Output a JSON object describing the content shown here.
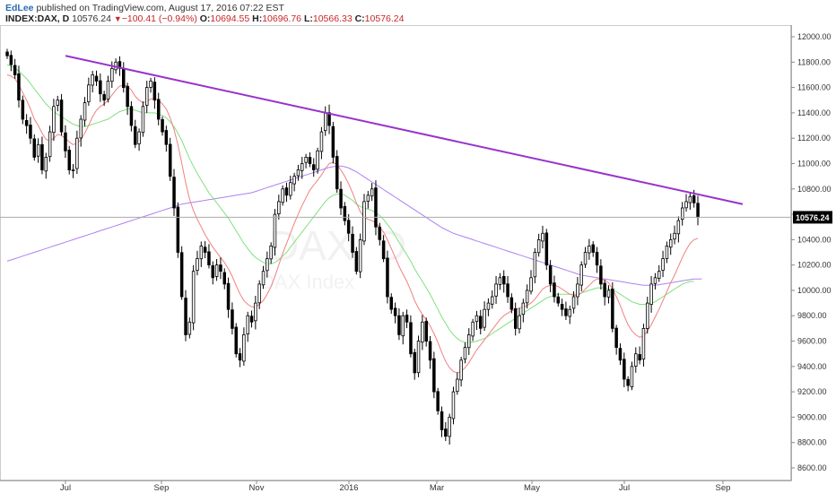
{
  "header": {
    "author": "EdLee",
    "published": "published on TradingView.com, August 17, 2016 07:22 EST",
    "symbol": "INDEX:DAX, D",
    "last": "10576.24",
    "change": "−100.41 (−0.94%)",
    "o_label": "O:",
    "o_value": "10694.55",
    "h_label": "H:",
    "h_value": "10696.76",
    "l_label": "L:",
    "l_value": "10566.33",
    "c_label": "C:",
    "c_value": "10576.24"
  },
  "watermark": {
    "line1": "DAX, D",
    "line2": "DAX Index"
  },
  "colors": {
    "up_candle": "#ffffff",
    "down_candle": "#000000",
    "ma_fast": "#f08080",
    "ma_mid": "#80e080",
    "ma_slow": "#b080f0",
    "trendline": "#9932cc",
    "price_line": "#aaaaaa",
    "price_tag_bg": "#000000"
  },
  "chart_data": {
    "type": "candlestick",
    "ylim": [
      8500,
      12100
    ],
    "y_ticks": [
      8600,
      8800,
      9000,
      9200,
      9400,
      9600,
      9800,
      10000,
      10200,
      10400,
      10600,
      10800,
      11000,
      11200,
      11400,
      11600,
      11800,
      12000
    ],
    "y_tick_labels": [
      "8600.00",
      "8800.00",
      "9000.00",
      "9200.00",
      "9400.00",
      "9600.00",
      "9800.00",
      "10000.00",
      "10200.00",
      "10400.00",
      "10600.00",
      "10800.00",
      "11000.00",
      "11200.00",
      "11400.00",
      "11600.00",
      "11800.00",
      "12000.00"
    ],
    "x_tick_labels": [
      "Jul",
      "Sep",
      "Nov",
      "2016",
      "Mar",
      "May",
      "Jul",
      "Sep"
    ],
    "last_price_label": "10576.24",
    "last_price": 10576.24,
    "trendline": {
      "start": {
        "date": "2015-07-01",
        "price": 11850
      },
      "end": {
        "date": "2016-08-31",
        "price": 10680
      }
    },
    "closes": [
      11850,
      11780,
      11700,
      11500,
      11350,
      11300,
      11200,
      11050,
      11150,
      10950,
      11050,
      11250,
      11450,
      11500,
      11250,
      11100,
      10950,
      10950,
      11200,
      11350,
      11480,
      11620,
      11700,
      11650,
      11550,
      11500,
      11650,
      11750,
      11800,
      11750,
      11600,
      11450,
      11300,
      11150,
      11250,
      11450,
      11600,
      11650,
      11500,
      11350,
      11250,
      11150,
      10900,
      10650,
      10300,
      9950,
      9650,
      9750,
      10150,
      10250,
      10350,
      10300,
      10200,
      10100,
      10200,
      10150,
      10050,
      9850,
      9700,
      9500,
      9450,
      9650,
      9800,
      9750,
      9900,
      10050,
      10150,
      10250,
      10350,
      10600,
      10700,
      10800,
      10750,
      10850,
      10900,
      10950,
      11000,
      11050,
      11000,
      10950,
      11100,
      11250,
      11400,
      11300,
      11050,
      10800,
      10650,
      10550,
      10450,
      10300,
      10150,
      10400,
      10700,
      10750,
      10800,
      10500,
      10400,
      10250,
      9950,
      9850,
      9800,
      9650,
      9800,
      9750,
      9500,
      9350,
      9600,
      9750,
      9600,
      9450,
      9200,
      9050,
      8900,
      8850,
      9000,
      9200,
      9300,
      9450,
      9550,
      9650,
      9750,
      9800,
      9700,
      9850,
      9900,
      9950,
      10050,
      10100,
      10050,
      9950,
      9850,
      9700,
      9800,
      9900,
      10000,
      10100,
      10300,
      10400,
      10450,
      10200,
      10050,
      9950,
      9900,
      9850,
      9800,
      9850,
      9950,
      10050,
      10200,
      10300,
      10350,
      10300,
      10200,
      10050,
      9950,
      10000,
      9700,
      9550,
      9450,
      9300,
      9250,
      9400,
      9500,
      9450,
      9700,
      9900,
      10050,
      10100,
      10150,
      10250,
      10350,
      10400,
      10450,
      10550,
      10650,
      10700,
      10740,
      10690,
      10576
    ],
    "ma_fast_values": [
      11700,
      11690,
      11670,
      11620,
      11560,
      11500,
      11430,
      11350,
      11300,
      11240,
      11190,
      11180,
      11200,
      11230,
      11220,
      11200,
      11170,
      11150,
      11160,
      11190,
      11240,
      11300,
      11370,
      11420,
      11450,
      11470,
      11500,
      11540,
      11580,
      11610,
      11620,
      11610,
      11580,
      11530,
      11500,
      11480,
      11490,
      11510,
      11510,
      11500,
      11470,
      11430,
      11360,
      11270,
      11150,
      11000,
      10850,
      10720,
      10630,
      10560,
      10500,
      10440,
      10390,
      10340,
      10300,
      10260,
      10220,
      10170,
      10110,
      10040,
      9970,
      9920,
      9890,
      9870,
      9870,
      9890,
      9920,
      9970,
      10030,
      10110,
      10200,
      10290,
      10370,
      10450,
      10530,
      10600,
      10670,
      10730,
      10790,
      10830,
      10870,
      10910,
      10960,
      11000,
      11010,
      10990,
      10950,
      10900,
      10840,
      10770,
      10690,
      10620,
      10580,
      10560,
      10550,
      10530,
      10500,
      10460,
      10400,
      10330,
      10260,
      10190,
      10130,
      10070,
      10000,
      9920,
      9860,
      9810,
      9770,
      9720,
      9660,
      9590,
      9510,
      9440,
      9390,
      9360,
      9350,
      9360,
      9390,
      9430,
      9480,
      9530,
      9570,
      9610,
      9650,
      9690,
      9730,
      9770,
      9800,
      9820,
      9840,
      9850,
      9860,
      9870,
      9880,
      9900,
      9930,
      9970,
      10010,
      10030,
      10040,
      10040,
      10030,
      10010,
      9990,
      9970,
      9960,
      9960,
      9980,
      10010,
      10040,
      10070,
      10090,
      10090,
      10080,
      10060,
      10010,
      9950,
      9880,
      9800,
      9730,
      9680,
      9650,
      9630,
      9640,
      9680,
      9730,
      9790,
      9850,
      9920,
      9990,
      10060,
      10120,
      10190,
      10260,
      10320,
      10370,
      10400,
      10410
    ],
    "ma_mid_values": [
      11780,
      11770,
      11750,
      11730,
      11700,
      11670,
      11630,
      11590,
      11550,
      11510,
      11470,
      11440,
      11410,
      11390,
      11370,
      11350,
      11330,
      11310,
      11300,
      11290,
      11290,
      11300,
      11310,
      11320,
      11330,
      11340,
      11350,
      11370,
      11390,
      11410,
      11420,
      11430,
      11430,
      11420,
      11410,
      11400,
      11400,
      11400,
      11400,
      11390,
      11380,
      11360,
      11330,
      11290,
      11240,
      11180,
      11110,
      11040,
      10980,
      10920,
      10870,
      10820,
      10770,
      10730,
      10690,
      10650,
      10610,
      10570,
      10520,
      10470,
      10420,
      10370,
      10330,
      10290,
      10260,
      10240,
      10220,
      10210,
      10210,
      10220,
      10240,
      10270,
      10300,
      10340,
      10380,
      10420,
      10460,
      10500,
      10540,
      10580,
      10620,
      10660,
      10700,
      10730,
      10750,
      10760,
      10760,
      10750,
      10730,
      10710,
      10680,
      10660,
      10650,
      10640,
      10630,
      10610,
      10590,
      10560,
      10520,
      10480,
      10430,
      10380,
      10330,
      10280,
      10230,
      10170,
      10120,
      10070,
      10020,
      9970,
      9910,
      9850,
      9790,
      9740,
      9690,
      9650,
      9620,
      9600,
      9590,
      9590,
      9590,
      9600,
      9610,
      9620,
      9640,
      9660,
      9680,
      9700,
      9720,
      9740,
      9760,
      9780,
      9800,
      9820,
      9840,
      9860,
      9880,
      9900,
      9920,
      9940,
      9950,
      9960,
      9970,
      9970,
      9970,
      9970,
      9970,
      9970,
      9980,
      9990,
      10000,
      10010,
      10020,
      10020,
      10020,
      10010,
      10000,
      9990,
      9970,
      9950,
      9930,
      9910,
      9900,
      9890,
      9890,
      9890,
      9900,
      9910,
      9930,
      9950,
      9970,
      9990,
      10010,
      10030,
      10050,
      10060,
      10070,
      10070
    ],
    "ma_slow_values": [
      10230,
      10240,
      10250,
      10260,
      10270,
      10280,
      10290,
      10300,
      10310,
      10320,
      10330,
      10340,
      10350,
      10360,
      10370,
      10380,
      10390,
      10400,
      10410,
      10420,
      10430,
      10440,
      10450,
      10460,
      10470,
      10480,
      10490,
      10500,
      10510,
      10520,
      10530,
      10540,
      10550,
      10560,
      10570,
      10580,
      10590,
      10600,
      10610,
      10620,
      10630,
      10640,
      10650,
      10660,
      10670,
      10680,
      10685,
      10690,
      10695,
      10700,
      10705,
      10710,
      10715,
      10720,
      10725,
      10730,
      10735,
      10740,
      10745,
      10750,
      10755,
      10760,
      10765,
      10770,
      10780,
      10790,
      10800,
      10810,
      10820,
      10830,
      10840,
      10850,
      10860,
      10870,
      10880,
      10890,
      10900,
      10910,
      10920,
      10930,
      10940,
      10950,
      10960,
      10970,
      10975,
      10980,
      10980,
      10975,
      10965,
      10950,
      10935,
      10915,
      10895,
      10875,
      10855,
      10835,
      10815,
      10795,
      10775,
      10755,
      10735,
      10715,
      10695,
      10675,
      10655,
      10635,
      10615,
      10595,
      10575,
      10555,
      10535,
      10515,
      10495,
      10480,
      10465,
      10450,
      10440,
      10430,
      10420,
      10410,
      10400,
      10390,
      10380,
      10370,
      10360,
      10350,
      10340,
      10330,
      10320,
      10310,
      10300,
      10290,
      10280,
      10270,
      10260,
      10250,
      10240,
      10230,
      10220,
      10210,
      10200,
      10190,
      10180,
      10170,
      10160,
      10150,
      10140,
      10130,
      10120,
      10115,
      10110,
      10105,
      10100,
      10095,
      10090,
      10085,
      10080,
      10075,
      10070,
      10065,
      10060,
      10055,
      10050,
      10045,
      10040,
      10040,
      10040,
      10040,
      10045,
      10050,
      10055,
      10060,
      10065,
      10070,
      10075,
      10080,
      10085,
      10090,
      10090,
      10090
    ]
  }
}
